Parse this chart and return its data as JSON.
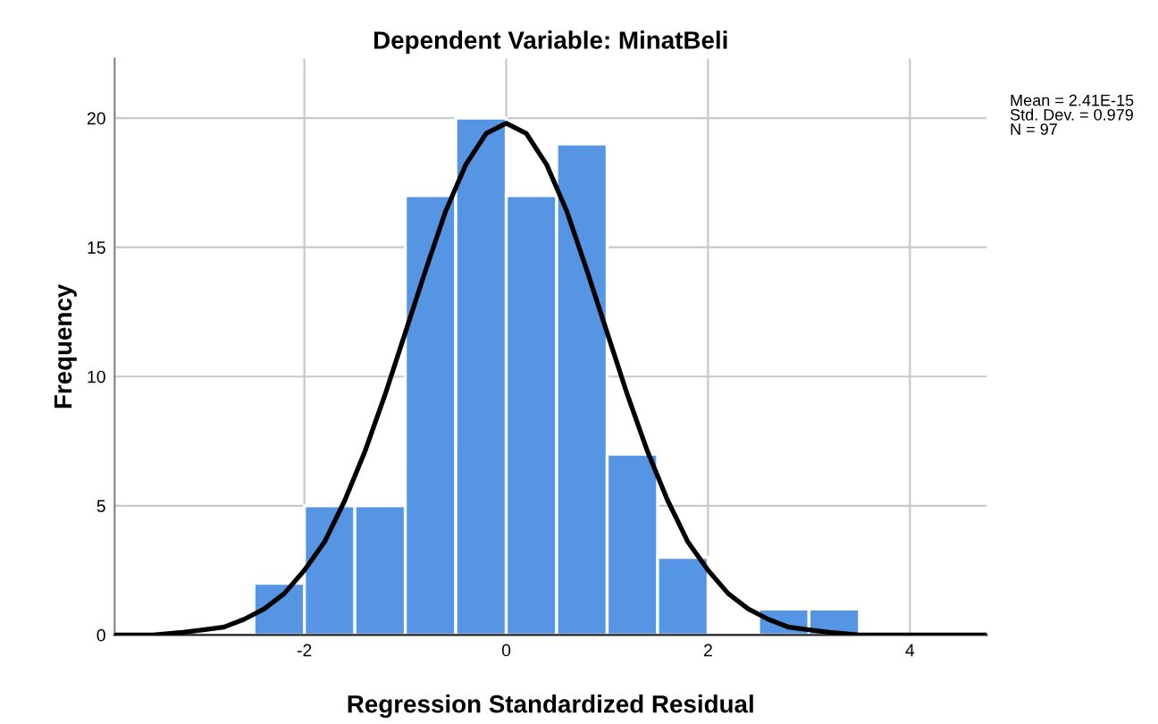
{
  "chart_data": {
    "type": "histogram",
    "title": "Dependent Variable: MinatBeli",
    "xlabel": "Regression Standardized Residual",
    "ylabel": "Frequency",
    "bins": [
      -2.5,
      -2.0,
      -1.5,
      -1.0,
      -0.5,
      0.0,
      0.5,
      1.0,
      1.5,
      2.0,
      2.5,
      3.0,
      3.5
    ],
    "values": [
      2,
      5,
      5,
      17,
      20,
      17,
      19,
      7,
      3,
      0,
      1,
      1
    ],
    "color": "#5595e3",
    "series": [
      {
        "type": "line",
        "color": "#000000",
        "x": [
          -3.88,
          -3.5,
          -3.2,
          -3.0,
          -2.8,
          -2.6,
          -2.4,
          -2.2,
          -2.0,
          -1.8,
          -1.6,
          -1.4,
          -1.2,
          -1.0,
          -0.8,
          -0.6,
          -0.4,
          -0.2,
          0.0,
          0.2,
          0.4,
          0.6,
          0.8,
          1.0,
          1.2,
          1.4,
          1.6,
          1.8,
          2.0,
          2.2,
          2.4,
          2.6,
          2.8,
          3.0,
          3.2,
          3.5,
          3.8,
          4.4,
          4.76
        ],
        "values": [
          0.0,
          0.0,
          0.1,
          0.2,
          0.3,
          0.6,
          1.0,
          1.6,
          2.5,
          3.6,
          5.2,
          7.1,
          9.3,
          11.7,
          14.1,
          16.4,
          18.2,
          19.4,
          19.8,
          19.4,
          18.2,
          16.4,
          14.1,
          11.7,
          9.3,
          7.1,
          5.2,
          3.6,
          2.5,
          1.6,
          1.0,
          0.6,
          0.3,
          0.2,
          0.1,
          0.0,
          0.0,
          0.0,
          0.0
        ]
      }
    ],
    "annotations": [
      "Mean = 2.41E-15\nStd. Dev. = 0.979\nN = 97"
    ],
    "xlim": [
      -3.88,
      4.76
    ],
    "ylim": [
      0,
      22.3
    ],
    "xticks": [
      -2,
      0,
      2,
      4
    ],
    "yticks": [
      0,
      5,
      10,
      15,
      20
    ],
    "grid": true
  }
}
